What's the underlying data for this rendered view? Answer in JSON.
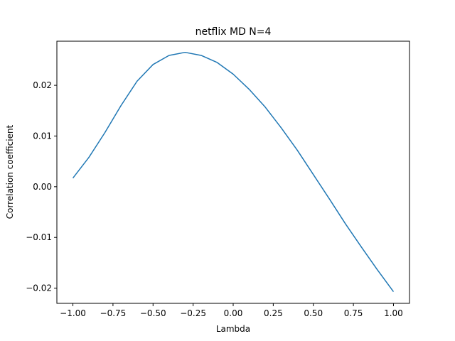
{
  "chart_data": {
    "type": "line",
    "title": "netflix MD N=4",
    "xlabel": "Lambda",
    "ylabel": "Correlation coefficient",
    "xlim": [
      -1.1,
      1.1
    ],
    "ylim": [
      -0.023,
      0.0287
    ],
    "grid": false,
    "x_ticks": [
      "−1.00",
      "−0.75",
      "−0.50",
      "−0.25",
      "0.00",
      "0.25",
      "0.50",
      "0.75",
      "1.00"
    ],
    "x_tick_values": [
      -1.0,
      -0.75,
      -0.5,
      -0.25,
      0.0,
      0.25,
      0.5,
      0.75,
      1.0
    ],
    "y_ticks": [
      "−0.02",
      "−0.01",
      "0.00",
      "0.01",
      "0.02"
    ],
    "y_tick_values": [
      -0.02,
      -0.01,
      0.0,
      0.01,
      0.02
    ],
    "series": [
      {
        "color": "#1f77b4",
        "x": [
          -1.0,
          -0.9,
          -0.8,
          -0.7,
          -0.6,
          -0.5,
          -0.4,
          -0.3,
          -0.2,
          -0.1,
          0.0,
          0.1,
          0.2,
          0.3,
          0.4,
          0.5,
          0.6,
          0.7,
          0.8,
          0.9,
          1.0
        ],
        "y": [
          0.0017,
          0.0058,
          0.0107,
          0.016,
          0.0208,
          0.0241,
          0.0259,
          0.0265,
          0.0259,
          0.0245,
          0.0222,
          0.0192,
          0.0157,
          0.0116,
          0.0072,
          0.0024,
          -0.0024,
          -0.0073,
          -0.0119,
          -0.0164,
          -0.0207
        ]
      }
    ]
  }
}
